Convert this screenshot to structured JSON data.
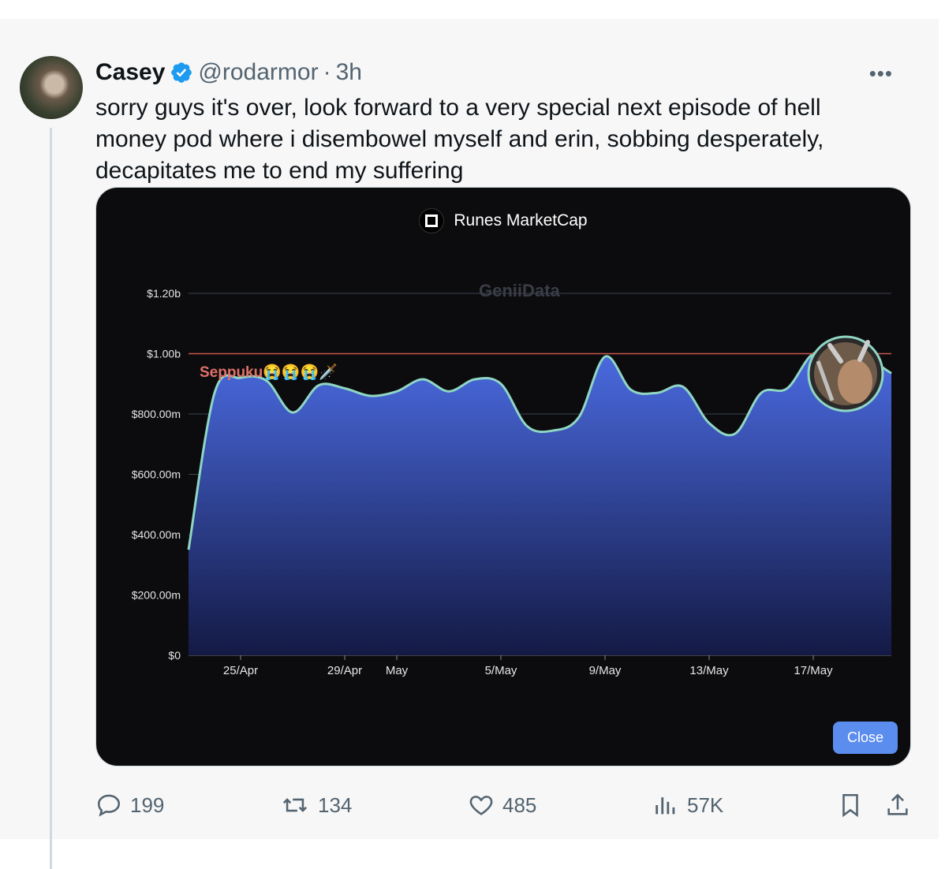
{
  "tweet": {
    "name": "Casey",
    "handle": "@rodarmor",
    "separator": "·",
    "time": "3h",
    "more": "•••",
    "text": "sorry guys it's over, look forward to a very special next episode of hell money pod where i disembowel myself and erin, sobbing desperately, decapitates me to end my suffering"
  },
  "media": {
    "close_label": "Close",
    "watermark": "GeniiData",
    "annotation": "Seppuku😭😭😭🗡️"
  },
  "actions": {
    "replies": "199",
    "retweets": "134",
    "likes": "485",
    "views": "57K"
  },
  "colors": {
    "verified": "#1d9bf0",
    "line": "#8fd6c4",
    "fill_top": "#4a6ae0",
    "fill_bottom": "#141a45",
    "threshold": "#c9574d",
    "close_button": "#5b8def"
  },
  "chart_data": {
    "type": "area",
    "title": "Runes MarketCap",
    "y_ticks": [
      "$0",
      "$200.00m",
      "$400.00m",
      "$600.00m",
      "$800.00m",
      "$1.00b",
      "$1.20b"
    ],
    "ylim": [
      0,
      1200
    ],
    "y_unit": "millions USD",
    "x_ticks": [
      "25/Apr",
      "29/Apr",
      "May",
      "5/May",
      "9/May",
      "13/May",
      "17/May"
    ],
    "xlim": [
      "2024-04-23",
      "2024-05-20"
    ],
    "threshold": 1000,
    "grid": true,
    "series": [
      {
        "x": [
          "2024-04-23",
          "2024-04-24",
          "2024-04-25",
          "2024-04-26",
          "2024-04-27",
          "2024-04-28",
          "2024-04-29",
          "2024-04-30",
          "2024-05-01",
          "2024-05-02",
          "2024-05-03",
          "2024-05-04",
          "2024-05-05",
          "2024-05-06",
          "2024-05-07",
          "2024-05-08",
          "2024-05-09",
          "2024-05-10",
          "2024-05-11",
          "2024-05-12",
          "2024-05-13",
          "2024-05-14",
          "2024-05-15",
          "2024-05-16",
          "2024-05-17",
          "2024-05-18",
          "2024-05-19",
          "2024-05-20"
        ],
        "values": [
          350,
          870,
          920,
          910,
          805,
          895,
          885,
          860,
          875,
          915,
          875,
          915,
          900,
          760,
          745,
          790,
          990,
          880,
          870,
          890,
          770,
          735,
          870,
          885,
          1000,
          985,
          985,
          935
        ]
      }
    ]
  }
}
